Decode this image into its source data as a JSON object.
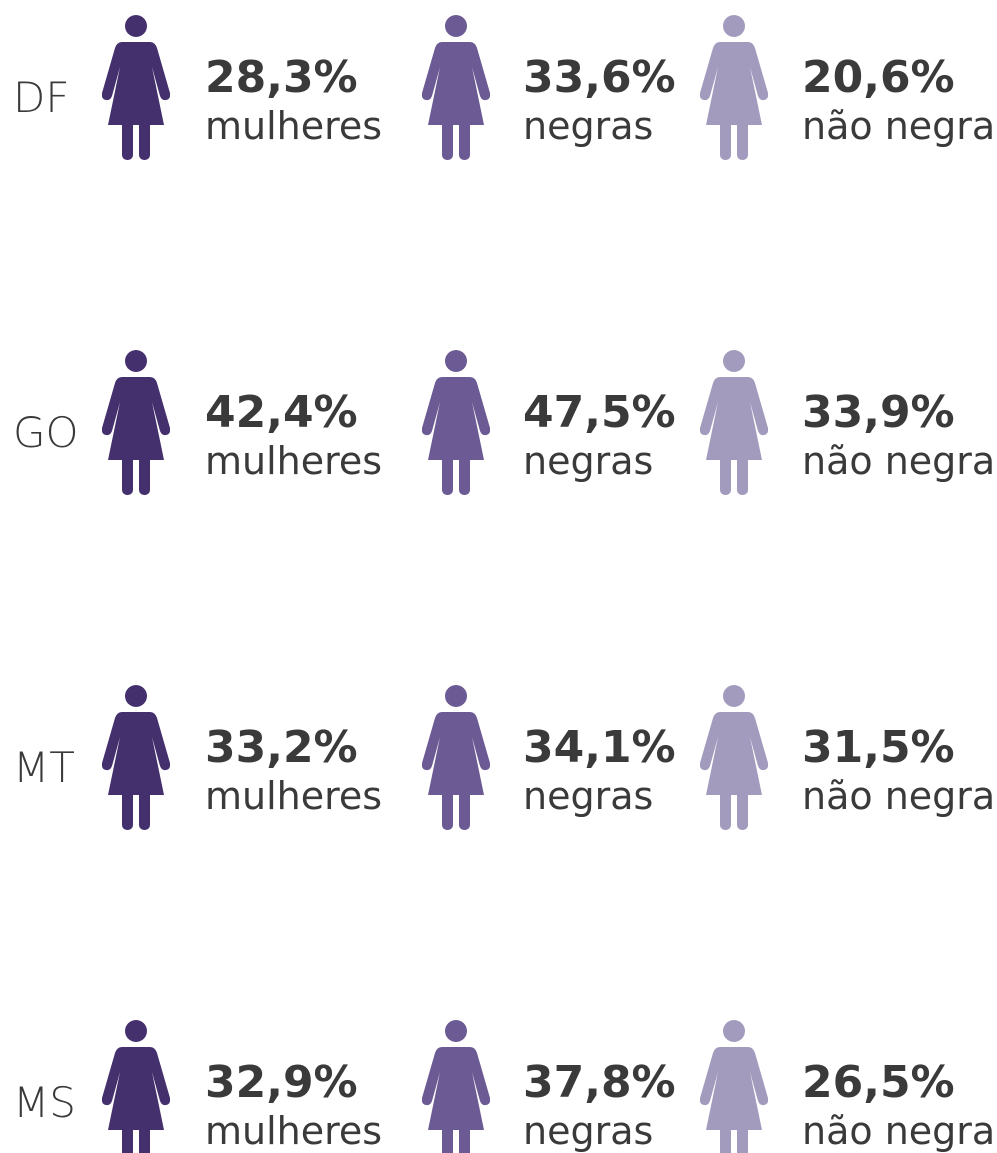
{
  "colors": [
    "#45306e",
    "#6b5a93",
    "#a39bbd"
  ],
  "rows": [
    {
      "state": "DF",
      "items": [
        {
          "value": "28,3%",
          "label": "mulheres"
        },
        {
          "value": "33,6%",
          "label": "negras"
        },
        {
          "value": "20,6%",
          "label": "não negras"
        }
      ]
    },
    {
      "state": "GO",
      "items": [
        {
          "value": "42,4%",
          "label": "mulheres"
        },
        {
          "value": "47,5%",
          "label": "negras"
        },
        {
          "value": "33,9%",
          "label": "não negras"
        }
      ]
    },
    {
      "state": "MT",
      "items": [
        {
          "value": "33,2%",
          "label": "mulheres"
        },
        {
          "value": "34,1%",
          "label": "negras"
        },
        {
          "value": "31,5%",
          "label": "não negras"
        }
      ]
    },
    {
      "state": "MS",
      "items": [
        {
          "value": "32,9%",
          "label": "mulheres"
        },
        {
          "value": "37,8%",
          "label": "negras"
        },
        {
          "value": "26,5%",
          "label": "não negras"
        }
      ]
    }
  ]
}
